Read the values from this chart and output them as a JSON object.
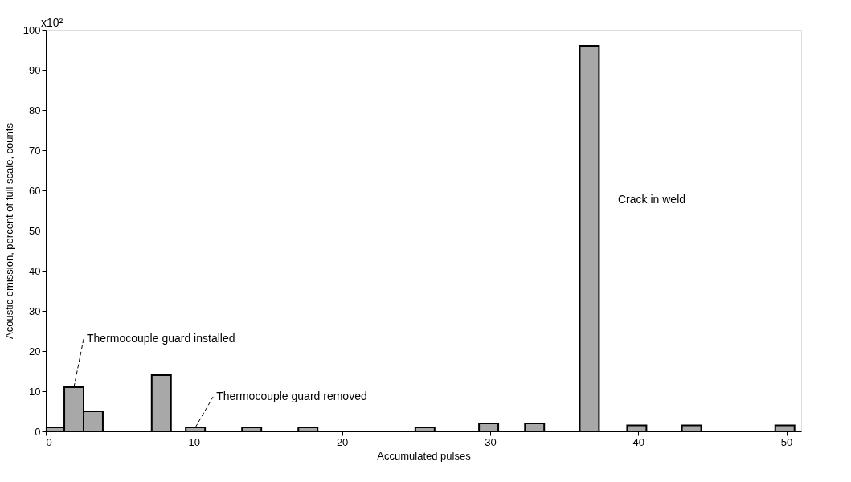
{
  "chart_data": {
    "type": "bar",
    "xlabel": "Accumulated pulses",
    "ylabel": "Acoustic emission, percent of full scale, counts",
    "x": [
      0.7,
      1.9,
      3.2,
      7.8,
      10.1,
      13.9,
      17.7,
      25.6,
      29.9,
      33.0,
      36.7,
      39.9,
      43.6,
      49.9
    ],
    "values": [
      1,
      11,
      5,
      14,
      1,
      1,
      1,
      1,
      2,
      2,
      96,
      1.5,
      1.5,
      1.5
    ],
    "color": "#a8a8a8",
    "xlim": [
      0,
      51
    ],
    "xticks": [
      0,
      10,
      20,
      30,
      40,
      50
    ],
    "ylim": [
      0,
      100
    ],
    "yticks": [
      0,
      10,
      20,
      30,
      40,
      50,
      60,
      70,
      80,
      90,
      100
    ],
    "grid": false,
    "annotations": [
      {
        "text": "Thermocouple guard installed",
        "x": 1.9,
        "y": 11
      },
      {
        "text": "Thermocouple guard removed",
        "x": 10.1,
        "y": 1
      },
      "Crack in weld",
      "x10²"
    ]
  }
}
